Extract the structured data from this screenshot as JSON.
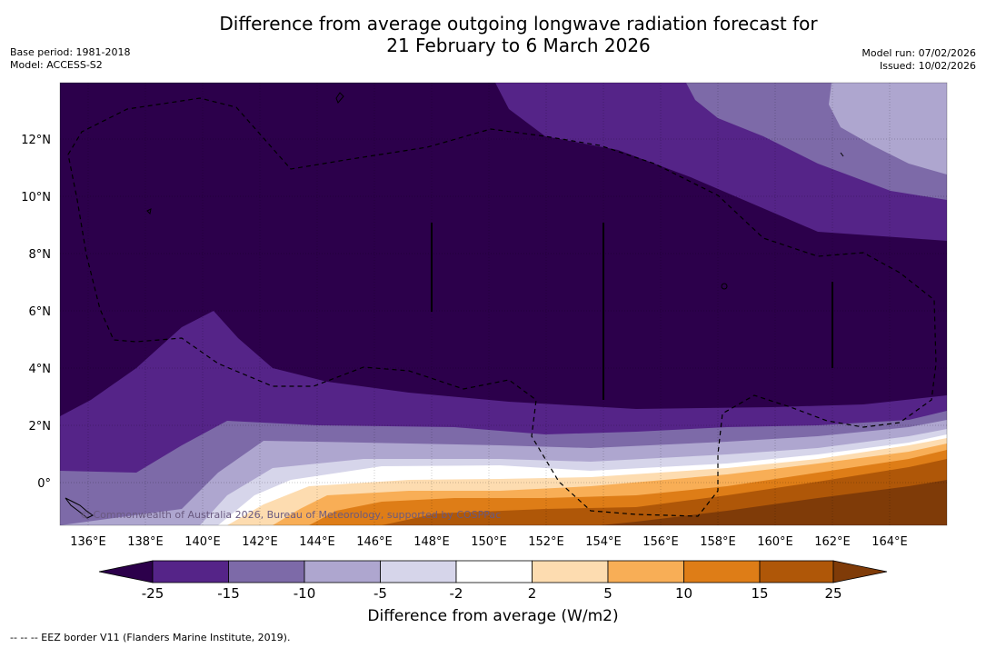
{
  "title": {
    "line1": "Difference from average outgoing longwave radiation forecast for",
    "line2": "21 February to 6 March 2026"
  },
  "meta": {
    "base_period": "Base period: 1981-2018",
    "model": "Model: ACCESS-S2",
    "model_run": "Model run: 07/02/2026",
    "issued": "Issued: 10/02/2026"
  },
  "map": {
    "lon_labels": [
      "136°E",
      "138°E",
      "140°E",
      "142°E",
      "144°E",
      "146°E",
      "148°E",
      "150°E",
      "152°E",
      "154°E",
      "156°E",
      "158°E",
      "160°E",
      "162°E",
      "164°E"
    ],
    "lat_labels": [
      "12°N",
      "10°N",
      "8°N",
      "6°N",
      "4°N",
      "2°N",
      "0°"
    ],
    "copyright": "© Commonwealth of Australia 2026, Bureau of Meteorology, supported by COSPPac"
  },
  "colorbar": {
    "ticks": [
      "-25",
      "-15",
      "-10",
      "-5",
      "-2",
      "2",
      "5",
      "10",
      "15",
      "25"
    ],
    "colors": [
      "#2c004b",
      "#552488",
      "#7d6aa8",
      "#aea6cf",
      "#d6d5ea",
      "#ffffff",
      "#fddcb0",
      "#f8ae56",
      "#de7d17",
      "#af5708",
      "#7f3b08"
    ],
    "title": "Difference from average (W/m2)"
  },
  "footnote": "--  --  -- EEZ border V11 (Flanders Marine Institute, 2019)."
}
